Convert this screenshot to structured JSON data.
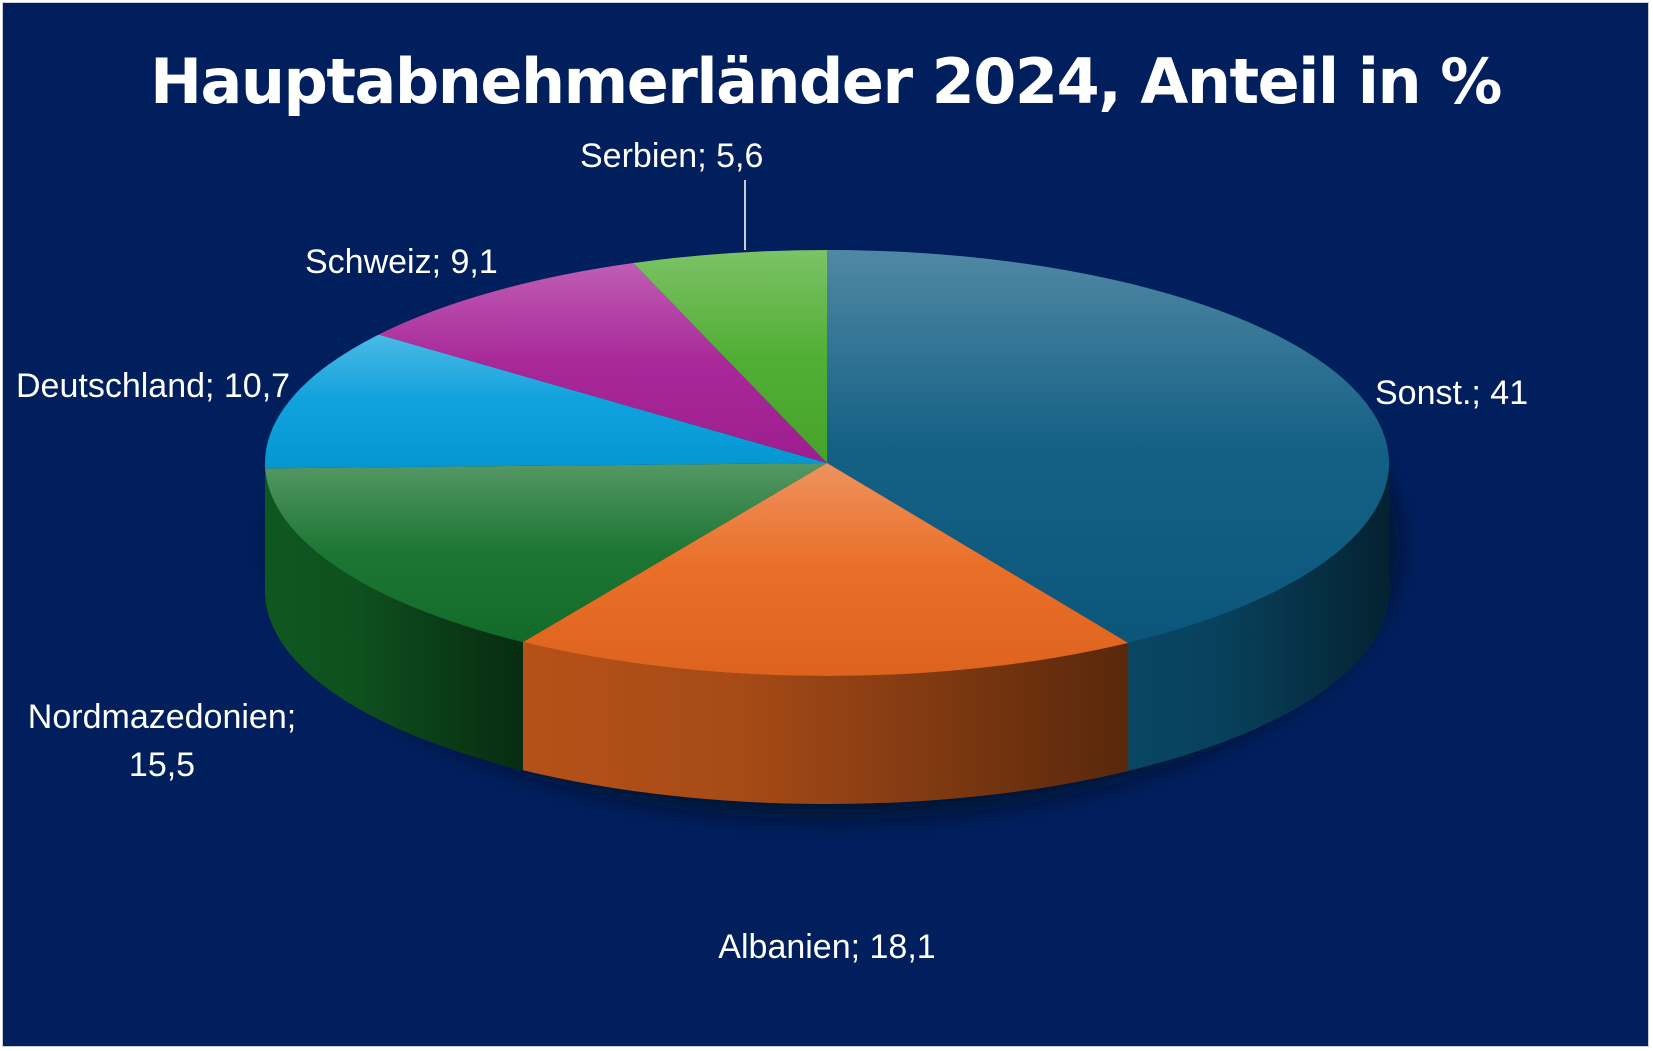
{
  "chart_data": {
    "type": "pie",
    "title": "Hauptabnehmerländer 2024, Anteil in %",
    "style": "3d",
    "slices": [
      {
        "label": "Sonst.",
        "value": 41,
        "display": "Sonst.; 41",
        "color": "#0b5a80"
      },
      {
        "label": "Albanien",
        "value": 18.1,
        "display": "Albanien; 18,1",
        "color": "#e8681f"
      },
      {
        "label": "Nordmazedonien",
        "value": 15.5,
        "display_lines": [
          "Nordmazedonien;",
          "15,5"
        ],
        "color": "#13702a"
      },
      {
        "label": "Deutschland",
        "value": 10.7,
        "display": "Deutschland; 10,7",
        "color": "#059edb"
      },
      {
        "label": "Schweiz",
        "value": 9.1,
        "display": "Schweiz; 9,1",
        "color": "#a51f95"
      },
      {
        "label": "Serbien",
        "value": 5.6,
        "display": "Serbien; 5,6",
        "color": "#4aab2c"
      }
    ]
  }
}
